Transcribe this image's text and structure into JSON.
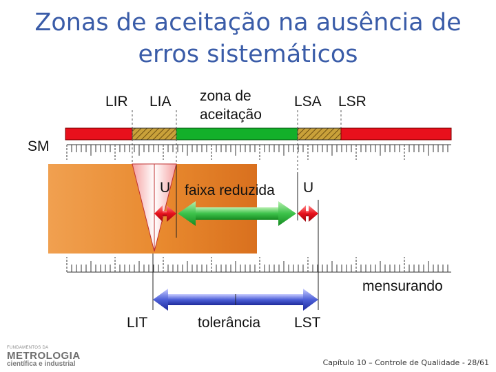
{
  "title_line1": "Zonas de aceitação na ausência de",
  "title_line2": "erros sistemáticos",
  "labels": {
    "lir": "LIR",
    "lia": "LIA",
    "zona_line1": "zona de",
    "zona_line2": "aceitação",
    "lsa": "LSA",
    "lsr": "LSR",
    "sm": "SM",
    "u_left": "U",
    "faixa": "faixa reduzida",
    "u_right": "U",
    "mensurando": "mensurando",
    "lit": "LIT",
    "tolerancia": "tolerância",
    "lst": "LST"
  },
  "logo": {
    "tag": "FUNDAMENTOS DA",
    "main": "METROLOGIA",
    "sub": "científica e industrial"
  },
  "footer": "Capítulo 10 – Controle de Qualidade - 28/61",
  "colors": {
    "title": "#3a5ca8",
    "reject_zone": "#e8101c",
    "acceptance_zone": "#13b02a",
    "hatched_zone": "#9a7a2a",
    "uncertainty_block": "#e8892e",
    "reduced_band_arrow": "#3cc24a",
    "tolerance_arrow": "#4c5fd8",
    "u_arrows": "#e8101c"
  }
}
